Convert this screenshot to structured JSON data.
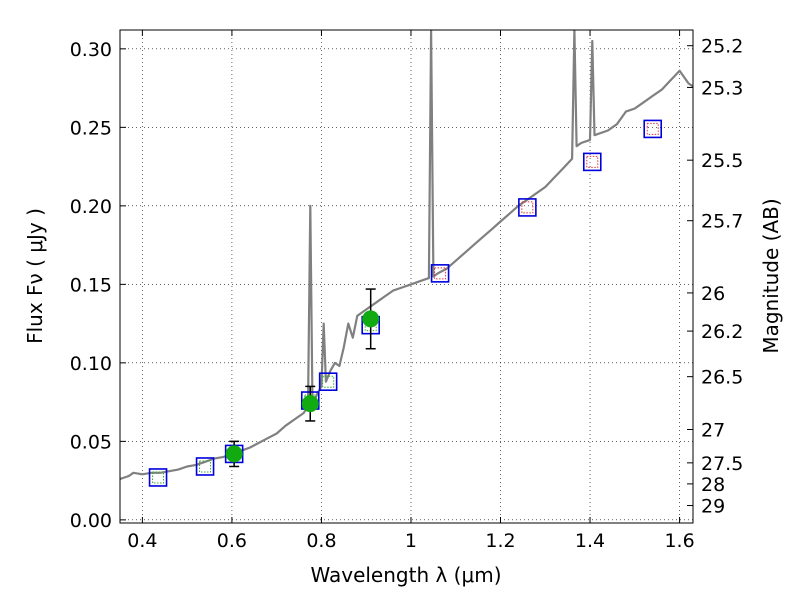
{
  "chart_data": {
    "type": "scatter",
    "title": "",
    "xlabel": "Wavelength  λ (μm)",
    "ylabel": "Flux  Fν  ( μJy )",
    "y2label": "Magnitude (AB)",
    "xlim": [
      0.35,
      1.63
    ],
    "ylim": [
      -0.002,
      0.312
    ],
    "grid": true,
    "xticks": [
      0.4,
      0.6,
      0.8,
      1.0,
      1.2,
      1.4,
      1.6
    ],
    "xtick_labels": [
      "0.4",
      "0.6",
      "0.8",
      "1",
      "1.2",
      "1.4",
      "1.6"
    ],
    "yticks": [
      0.0,
      0.05,
      0.1,
      0.15,
      0.2,
      0.25,
      0.3
    ],
    "ytick_labels": [
      "0.00",
      "0.05",
      "0.10",
      "0.15",
      "0.20",
      "0.25",
      "0.30"
    ],
    "mag_ticks": [
      {
        "value": 25.2,
        "label": "25.2"
      },
      {
        "value": 25.3,
        "label": "25.3"
      },
      {
        "value": 25.5,
        "label": "25.5"
      },
      {
        "value": 25.7,
        "label": "25.7"
      },
      {
        "value": 26,
        "label": "26"
      },
      {
        "value": 26.2,
        "label": "26.2"
      },
      {
        "value": 26.5,
        "label": "26.5"
      },
      {
        "value": 27,
        "label": "27"
      },
      {
        "value": 27.5,
        "label": "27.5"
      },
      {
        "value": 28,
        "label": "28"
      },
      {
        "value": 29,
        "label": "29"
      }
    ],
    "series": [
      {
        "name": "model-spectrum",
        "style": "line",
        "color": "#808080",
        "points": [
          [
            0.35,
            0.026
          ],
          [
            0.37,
            0.028
          ],
          [
            0.38,
            0.03
          ],
          [
            0.4,
            0.029
          ],
          [
            0.42,
            0.03
          ],
          [
            0.44,
            0.03
          ],
          [
            0.46,
            0.031
          ],
          [
            0.48,
            0.032
          ],
          [
            0.5,
            0.034
          ],
          [
            0.52,
            0.035
          ],
          [
            0.54,
            0.037
          ],
          [
            0.56,
            0.039
          ],
          [
            0.58,
            0.04
          ],
          [
            0.6,
            0.042
          ],
          [
            0.62,
            0.044
          ],
          [
            0.64,
            0.046
          ],
          [
            0.66,
            0.049
          ],
          [
            0.68,
            0.052
          ],
          [
            0.7,
            0.055
          ],
          [
            0.72,
            0.06
          ],
          [
            0.74,
            0.064
          ],
          [
            0.76,
            0.068
          ],
          [
            0.77,
            0.072
          ],
          [
            0.775,
            0.2
          ],
          [
            0.78,
            0.072
          ],
          [
            0.79,
            0.08
          ],
          [
            0.8,
            0.085
          ],
          [
            0.805,
            0.125
          ],
          [
            0.81,
            0.088
          ],
          [
            0.82,
            0.095
          ],
          [
            0.83,
            0.1
          ],
          [
            0.84,
            0.098
          ],
          [
            0.85,
            0.11
          ],
          [
            0.86,
            0.125
          ],
          [
            0.87,
            0.116
          ],
          [
            0.88,
            0.13
          ],
          [
            0.9,
            0.134
          ],
          [
            0.92,
            0.138
          ],
          [
            0.94,
            0.142
          ],
          [
            0.96,
            0.146
          ],
          [
            0.98,
            0.148
          ],
          [
            1.0,
            0.15
          ],
          [
            1.02,
            0.152
          ],
          [
            1.04,
            0.154
          ],
          [
            1.045,
            0.312
          ],
          [
            1.05,
            0.155
          ],
          [
            1.06,
            0.157
          ],
          [
            1.08,
            0.16
          ],
          [
            1.1,
            0.165
          ],
          [
            1.12,
            0.17
          ],
          [
            1.14,
            0.175
          ],
          [
            1.16,
            0.18
          ],
          [
            1.18,
            0.185
          ],
          [
            1.2,
            0.19
          ],
          [
            1.22,
            0.195
          ],
          [
            1.24,
            0.2
          ],
          [
            1.26,
            0.204
          ],
          [
            1.28,
            0.208
          ],
          [
            1.3,
            0.212
          ],
          [
            1.32,
            0.218
          ],
          [
            1.34,
            0.224
          ],
          [
            1.36,
            0.23
          ],
          [
            1.365,
            0.312
          ],
          [
            1.37,
            0.238
          ],
          [
            1.38,
            0.24
          ],
          [
            1.4,
            0.242
          ],
          [
            1.405,
            0.305
          ],
          [
            1.41,
            0.245
          ],
          [
            1.44,
            0.248
          ],
          [
            1.46,
            0.252
          ],
          [
            1.48,
            0.26
          ],
          [
            1.5,
            0.262
          ],
          [
            1.52,
            0.266
          ],
          [
            1.54,
            0.27
          ],
          [
            1.56,
            0.274
          ],
          [
            1.58,
            0.28
          ],
          [
            1.6,
            0.286
          ],
          [
            1.62,
            0.278
          ],
          [
            1.63,
            0.276
          ]
        ]
      },
      {
        "name": "broadband-filters",
        "style": "open-square",
        "color": "#0000dd",
        "points": [
          [
            0.435,
            0.027
          ],
          [
            0.54,
            0.034
          ],
          [
            0.605,
            0.042
          ],
          [
            0.775,
            0.076
          ],
          [
            0.815,
            0.088
          ],
          [
            0.91,
            0.124
          ],
          [
            1.065,
            0.157
          ],
          [
            1.26,
            0.199
          ],
          [
            1.405,
            0.228
          ],
          [
            1.54,
            0.249
          ]
        ]
      },
      {
        "name": "synthetic-photometry",
        "style": "small-square",
        "color": "#dd3333",
        "points": [
          [
            1.065,
            0.157
          ],
          [
            1.26,
            0.199
          ],
          [
            1.405,
            0.228
          ],
          [
            1.54,
            0.249
          ]
        ]
      },
      {
        "name": "optical-synthetic",
        "style": "small-square",
        "color": "#33aa33",
        "points": [
          [
            0.435,
            0.027
          ],
          [
            0.54,
            0.034
          ],
          [
            0.605,
            0.042
          ],
          [
            0.775,
            0.076
          ],
          [
            0.815,
            0.088
          ],
          [
            0.91,
            0.124
          ]
        ]
      },
      {
        "name": "measured-flux",
        "style": "filled-circle",
        "color": "#11aa11",
        "points": [
          {
            "x": 0.605,
            "y": 0.042,
            "err": 0.008
          },
          {
            "x": 0.775,
            "y": 0.074,
            "err": 0.011
          },
          {
            "x": 0.91,
            "y": 0.128,
            "err": 0.019
          }
        ]
      }
    ]
  }
}
